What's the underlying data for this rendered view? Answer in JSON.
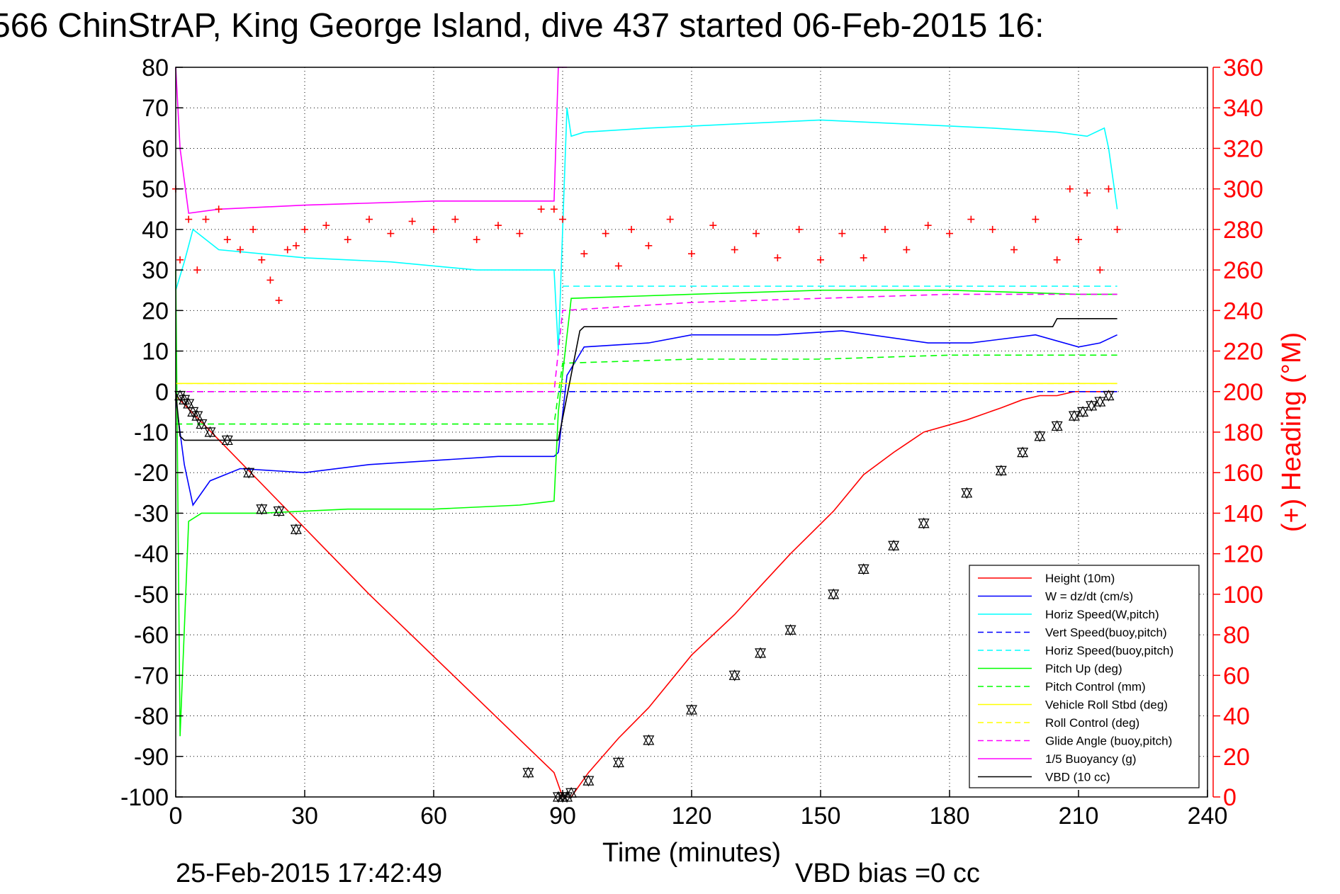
{
  "figure": {
    "title": "566 ChinStrAP, King George Island, dive 437 started 06-Feb-2015 16:",
    "timestamp": "25-Feb-2015 17:42:49",
    "vbd_bias": "VBD bias =0 cc"
  },
  "chart_data": {
    "type": "line",
    "title": "566 ChinStrAP, King George Island, dive 437 started 06-Feb-2015 16:",
    "xlabel": "Time (minutes)",
    "ylabel": "",
    "y2label": "(+) Heading (°M)",
    "xlim": [
      0,
      240
    ],
    "ylim": [
      -100,
      80
    ],
    "y2lim": [
      0,
      360
    ],
    "xticks": [
      0,
      30,
      60,
      90,
      120,
      150,
      180,
      210,
      240
    ],
    "yticks": [
      80,
      70,
      60,
      50,
      40,
      30,
      20,
      10,
      0,
      -10,
      -20,
      -30,
      -40,
      -50,
      -60,
      -70,
      -80,
      -90,
      -100
    ],
    "y2ticks": [
      360,
      340,
      320,
      300,
      280,
      260,
      240,
      220,
      200,
      180,
      160,
      140,
      120,
      100,
      80,
      60,
      40,
      20,
      0
    ],
    "grid": true,
    "legend_position": "bottom-right",
    "colors": {
      "height": "#ff0000",
      "w": "#0000ff",
      "horiz_speed": "#00ffff",
      "pitch": "#00ff00",
      "roll": "#ffff00",
      "glide": "#ff00ff",
      "buoyancy": "#ff00ff",
      "vbd": "#000000",
      "heading": "#ff0000",
      "right_axis": "#ff0000"
    },
    "series": [
      {
        "name": "Height (10m)",
        "style": "solid",
        "color": "#ff0000",
        "x": [
          0,
          45,
          88,
          90,
          92,
          96,
          103,
          110,
          120,
          130,
          136,
          143,
          153,
          160,
          167,
          174,
          184,
          192,
          197,
          201,
          205,
          209,
          213,
          217,
          219
        ],
        "y": [
          -1,
          -50,
          -94,
          -100,
          -100,
          -94,
          -85.5,
          -78,
          -65,
          -55,
          -48,
          -40,
          -29.5,
          -20.5,
          -15,
          -10,
          -7,
          -4,
          -2,
          -1,
          -1,
          0,
          0,
          0,
          0
        ]
      },
      {
        "name": "W = dz/dt (cm/s)",
        "style": "solid",
        "color": "#0000ff",
        "x": [
          0,
          2,
          4,
          8,
          15,
          30,
          45,
          60,
          75,
          88,
          89,
          91,
          95,
          110,
          120,
          140,
          155,
          175,
          185,
          200,
          210,
          215,
          219
        ],
        "y": [
          -2,
          -18,
          -28,
          -22,
          -19,
          -20,
          -18,
          -17,
          -16,
          -16,
          -15,
          4,
          11,
          12,
          14,
          14,
          15,
          12,
          12,
          14,
          11,
          12,
          14
        ]
      },
      {
        "name": "Horiz Speed(W,pitch)",
        "style": "solid",
        "color": "#00ffff",
        "x": [
          0,
          2,
          4,
          10,
          30,
          50,
          70,
          88,
          89,
          91,
          92,
          95,
          110,
          130,
          150,
          170,
          190,
          205,
          212,
          216,
          217,
          219
        ],
        "y": [
          25,
          32,
          40,
          35,
          33,
          32,
          30,
          30,
          10,
          70,
          63,
          64,
          65,
          66,
          67,
          66,
          65,
          64,
          63,
          65,
          60,
          45
        ]
      },
      {
        "name": "Vert Speed(buoy,pitch)",
        "style": "dashed",
        "color": "#0000ff",
        "x": [
          0,
          219
        ],
        "y": [
          0,
          0
        ]
      },
      {
        "name": "Horiz Speed(buoy,pitch)",
        "style": "dashed",
        "color": "#00ffff",
        "x": [
          90,
          219
        ],
        "y": [
          26,
          26
        ]
      },
      {
        "name": "Pitch Up (deg)",
        "style": "solid",
        "color": "#00ff00",
        "x": [
          0,
          1,
          3,
          6,
          20,
          40,
          60,
          80,
          88,
          89,
          92,
          120,
          150,
          180,
          210,
          219
        ],
        "y": [
          30,
          -85,
          -32,
          -30,
          -30,
          -29,
          -29,
          -28,
          -27,
          -5,
          23,
          24,
          25,
          25,
          24,
          24
        ]
      },
      {
        "name": "Pitch Control (mm)",
        "style": "dashed",
        "color": "#00ff00",
        "x": [
          0,
          5,
          88,
          90,
          120,
          150,
          180,
          219
        ],
        "y": [
          -8,
          -8,
          -8,
          7,
          8,
          8,
          9,
          9
        ]
      },
      {
        "name": "Vehicle Roll Stbd (deg)",
        "style": "solid",
        "color": "#ffff00",
        "x": [
          0,
          5,
          88,
          90,
          219
        ],
        "y": [
          2,
          2,
          2,
          2,
          2
        ]
      },
      {
        "name": "Roll Control (deg)",
        "style": "dashed",
        "color": "#ffff00",
        "x": [
          0,
          219
        ],
        "y": [
          2,
          2
        ]
      },
      {
        "name": "Glide Angle (buoy,pitch)",
        "style": "dashed",
        "color": "#ff00ff",
        "x": [
          0,
          88,
          90,
          120,
          150,
          180,
          219
        ],
        "y": [
          0,
          0,
          20,
          22,
          23,
          24,
          24
        ]
      },
      {
        "name": "1/5 Buoyancy (g)",
        "style": "solid",
        "color": "#ff00ff",
        "x": [
          0,
          1,
          3,
          10,
          30,
          60,
          88,
          89,
          91
        ],
        "y": [
          80,
          60,
          44,
          45,
          46,
          47,
          47,
          80,
          80
        ]
      },
      {
        "name": "VBD (10 cc)",
        "style": "solid",
        "color": "#000000",
        "x": [
          0,
          1,
          2,
          88,
          89,
          94,
          95,
          120,
          180,
          204,
          205,
          219
        ],
        "y": [
          0,
          -11,
          -12,
          -12,
          -12,
          15,
          16,
          16,
          16,
          16,
          18,
          18
        ]
      }
    ],
    "legend": [
      "Height (10m)",
      "W = dz/dt (cm/s)",
      "Horiz Speed(W,pitch)",
      "Vert Speed(buoy,pitch)",
      "Horiz Speed(buoy,pitch)",
      "Pitch Up (deg)",
      "Pitch Control (mm)",
      "Vehicle Roll Stbd (deg)",
      "Roll Control (deg)",
      "Glide Angle (buoy,pitch)",
      "1/5 Buoyancy (g)",
      "VBD (10 cc)"
    ],
    "heading": {
      "name": "Heading",
      "marker": "+",
      "color": "#ff0000",
      "x": [
        0,
        1,
        3,
        5,
        7,
        10,
        12,
        15,
        18,
        20,
        22,
        24,
        26,
        28,
        30,
        35,
        40,
        45,
        50,
        55,
        60,
        65,
        70,
        75,
        80,
        85,
        88,
        90,
        95,
        100,
        103,
        106,
        110,
        115,
        120,
        125,
        130,
        135,
        140,
        145,
        150,
        155,
        160,
        165,
        170,
        175,
        180,
        185,
        190,
        195,
        200,
        205,
        208,
        210,
        212,
        215,
        217,
        219
      ],
      "y": [
        300,
        265,
        285,
        260,
        285,
        290,
        275,
        270,
        280,
        265,
        255,
        245,
        270,
        272,
        280,
        282,
        275,
        285,
        278,
        284,
        280,
        285,
        275,
        282,
        278,
        290,
        290,
        285,
        268,
        278,
        262,
        280,
        272,
        285,
        268,
        282,
        270,
        278,
        266,
        280,
        265,
        278,
        266,
        280,
        270,
        282,
        278,
        285,
        280,
        270,
        285,
        265,
        300,
        275,
        298,
        260,
        300,
        280
      ]
    },
    "markers": {
      "name": "Height observations",
      "marker": "triangle",
      "x": [
        1,
        2,
        3,
        4,
        5,
        6,
        8,
        12,
        17,
        20,
        24,
        28,
        82,
        89,
        90,
        91,
        92,
        96,
        103,
        110,
        120,
        130,
        136,
        143,
        153,
        160,
        167,
        174,
        184,
        192,
        197,
        201,
        205,
        209,
        211,
        213,
        215,
        217
      ],
      "y": [
        -1,
        -2,
        -3,
        -5,
        -6,
        -8,
        -10,
        -12,
        -20,
        -29,
        -29.5,
        -34,
        -94,
        -100,
        -100,
        -100,
        -99,
        -96,
        -91.5,
        -86,
        -78.5,
        -70,
        -64.5,
        -58.8,
        -50,
        -43.8,
        -38,
        -32.5,
        -25,
        -19.5,
        -15,
        -11,
        -8.5,
        -6,
        -5,
        -3.5,
        -2.5,
        -1
      ]
    }
  }
}
